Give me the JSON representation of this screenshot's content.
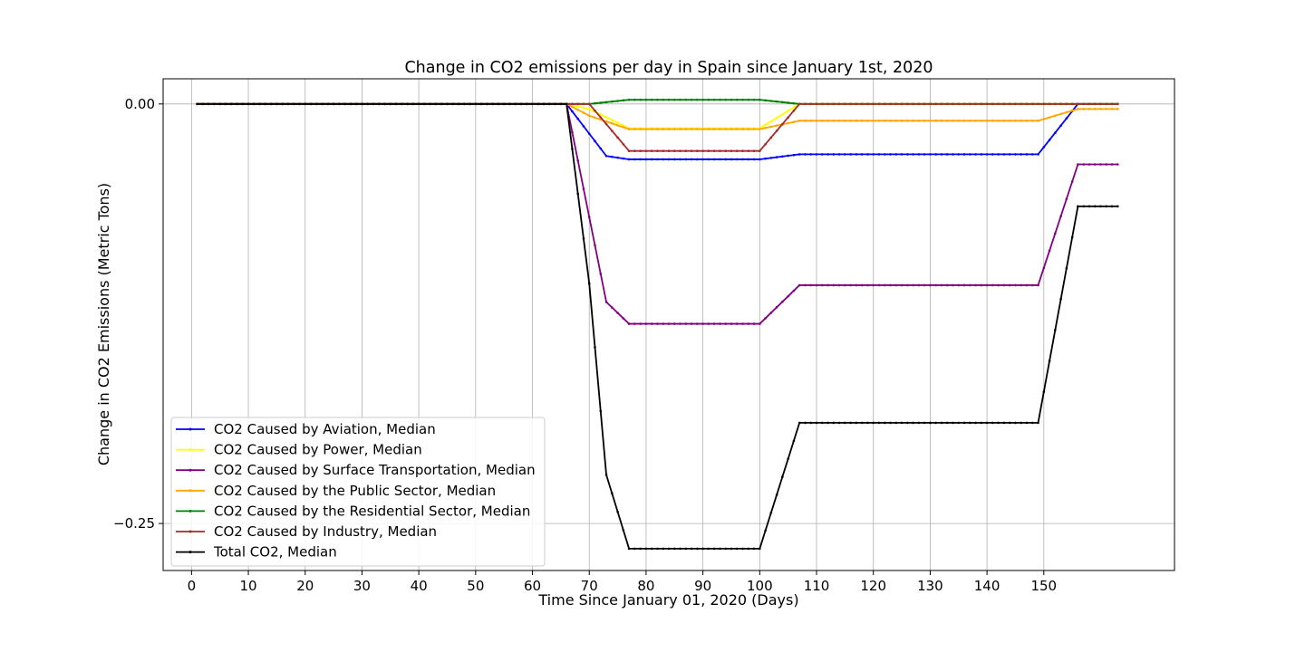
{
  "chart_data": {
    "type": "line",
    "title": "Change in CO2 emissions per day in Spain since January 1st, 2020",
    "xlabel": "Time Since January 01, 2020 (Days)",
    "ylabel": "Change in CO2 Emissions (Metric Tons)",
    "xlim": [
      -5,
      173
    ],
    "ylim": [
      -0.278,
      0.015
    ],
    "xticks": [
      0,
      10,
      20,
      30,
      40,
      50,
      60,
      70,
      80,
      90,
      100,
      110,
      120,
      130,
      140,
      150
    ],
    "yticks": [
      0,
      -0.25
    ],
    "ytick_labels": [
      "0.00",
      "−0.25"
    ],
    "grid": true,
    "legend_position": "lower-left",
    "x_range": [
      1,
      163
    ],
    "series": [
      {
        "name": "CO2 Caused by Aviation, Median",
        "color": "#0000ff",
        "points": [
          [
            1,
            0
          ],
          [
            66,
            0
          ],
          [
            73,
            -0.031
          ],
          [
            77,
            -0.033
          ],
          [
            100,
            -0.033
          ],
          [
            107,
            -0.03
          ],
          [
            149,
            -0.03
          ],
          [
            156,
            0
          ],
          [
            163,
            0
          ]
        ]
      },
      {
        "name": "CO2 Caused by Power, Median",
        "color": "#ffff00",
        "points": [
          [
            1,
            0
          ],
          [
            66,
            0
          ],
          [
            70,
            -0.003
          ],
          [
            77,
            -0.0145
          ],
          [
            100,
            -0.0145
          ],
          [
            107,
            0
          ],
          [
            163,
            0
          ]
        ]
      },
      {
        "name": "CO2 Caused by Surface Transportation, Median",
        "color": "#800080",
        "points": [
          [
            1,
            0
          ],
          [
            66,
            0
          ],
          [
            73,
            -0.118
          ],
          [
            77,
            -0.131
          ],
          [
            100,
            -0.131
          ],
          [
            107,
            -0.108
          ],
          [
            149,
            -0.108
          ],
          [
            156,
            -0.036
          ],
          [
            163,
            -0.036
          ]
        ]
      },
      {
        "name": "CO2 Caused by the Public Sector, Median",
        "color": "#ffa500",
        "points": [
          [
            1,
            0
          ],
          [
            66,
            0
          ],
          [
            70,
            -0.007
          ],
          [
            77,
            -0.015
          ],
          [
            100,
            -0.015
          ],
          [
            107,
            -0.01
          ],
          [
            149,
            -0.01
          ],
          [
            156,
            -0.003
          ],
          [
            163,
            -0.003
          ]
        ]
      },
      {
        "name": "CO2 Caused by the Residential Sector, Median",
        "color": "#008000",
        "points": [
          [
            1,
            0
          ],
          [
            66,
            0
          ],
          [
            70,
            0
          ],
          [
            77,
            0.0025
          ],
          [
            100,
            0.0025
          ],
          [
            107,
            0
          ],
          [
            163,
            0
          ]
        ]
      },
      {
        "name": "CO2 Caused by Industry, Median",
        "color": "#a52a2a",
        "points": [
          [
            1,
            0
          ],
          [
            66,
            0
          ],
          [
            70,
            0
          ],
          [
            77,
            -0.028
          ],
          [
            100,
            -0.028
          ],
          [
            107,
            0
          ],
          [
            163,
            0
          ]
        ]
      },
      {
        "name": "Total CO2, Median",
        "color": "#000000",
        "points": [
          [
            1,
            0
          ],
          [
            66,
            0
          ],
          [
            70,
            -0.107
          ],
          [
            73,
            -0.221
          ],
          [
            77,
            -0.265
          ],
          [
            100,
            -0.265
          ],
          [
            107,
            -0.19
          ],
          [
            149,
            -0.19
          ],
          [
            156,
            -0.061
          ],
          [
            163,
            -0.061
          ]
        ]
      }
    ]
  }
}
